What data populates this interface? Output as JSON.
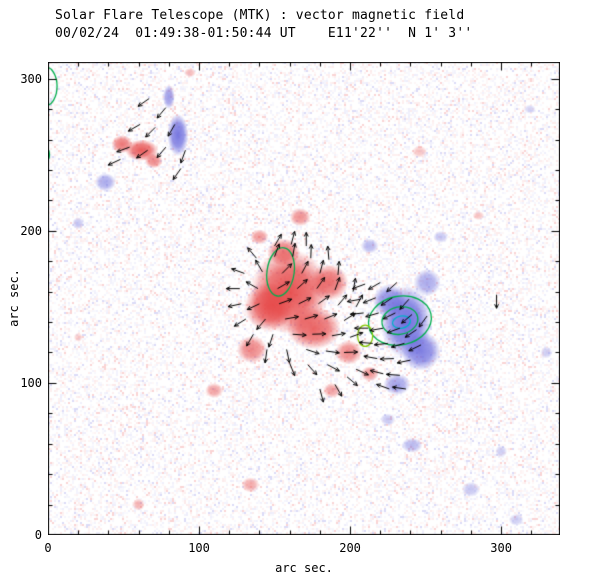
{
  "title": {
    "line1": "Solar Flare Telescope (MTK) : vector magnetic field",
    "line2": "00/02/24  01:49:38-01:50:44 UT    E11'22''  N 1' 3''"
  },
  "axes": {
    "xlabel": "arc sec.",
    "ylabel": "arc sec.",
    "x_range": [
      0,
      339
    ],
    "y_range": [
      0,
      311
    ],
    "x_ticks": [
      0,
      100,
      200,
      300
    ],
    "y_ticks": [
      0,
      100,
      200,
      300
    ],
    "minor_tick_step": 20
  },
  "colors": {
    "background": "#ffffff",
    "axis": "#000000",
    "positive": "#e64545",
    "negative": "#6464dc",
    "vector": "#000000",
    "contour_green": "#00ae4d",
    "contour_cyan": "#00b2c8",
    "contour_yellow_green": "#86c800",
    "noise_red": "#e63c3c",
    "noise_blue": "#5a5adc"
  },
  "chart_data": {
    "type": "heatmap",
    "title": "Solar Flare Telescope (MTK) : vector magnetic field",
    "subtitle": "00/02/24  01:49:38-01:50:44 UT    E11'22''  N 1' 3''",
    "xlabel": "arc sec.",
    "ylabel": "arc sec.",
    "x_range": [
      0,
      339
    ],
    "y_range": [
      0,
      311
    ],
    "x_ticks": [
      0,
      100,
      200,
      300
    ],
    "y_ticks": [
      0,
      100,
      200,
      300
    ],
    "positive_polarity_blobs": [
      [
        160,
        160,
        26,
        28,
        1
      ],
      [
        146,
        150,
        16,
        16,
        0.95
      ],
      [
        176,
        136,
        18,
        14,
        0.9
      ],
      [
        186,
        166,
        13,
        12,
        0.85
      ],
      [
        156,
        186,
        11,
        9,
        0.8
      ],
      [
        199,
        120,
        9,
        8,
        0.7
      ],
      [
        213,
        106,
        6,
        5,
        0.6
      ],
      [
        167,
        209,
        7,
        6,
        0.65
      ],
      [
        140,
        196,
        6,
        5,
        0.6
      ],
      [
        135,
        122,
        10,
        9,
        0.7
      ],
      [
        110,
        95,
        6,
        5,
        0.55
      ],
      [
        188,
        95,
        6,
        5,
        0.55
      ],
      [
        62,
        253,
        11,
        7,
        0.95
      ],
      [
        49,
        257,
        7,
        6,
        0.8
      ],
      [
        70,
        246,
        6,
        5,
        0.7
      ],
      [
        134,
        33,
        6,
        5,
        0.5
      ],
      [
        60,
        20,
        4,
        4,
        0.45
      ],
      [
        94,
        304,
        4,
        3,
        0.4
      ],
      [
        246,
        252,
        5,
        4,
        0.35
      ],
      [
        285,
        210,
        4,
        3,
        0.35
      ],
      [
        20,
        130,
        3,
        3,
        0.3
      ]
    ],
    "negative_polarity_blobs": [
      [
        237,
        140,
        17,
        24,
        1
      ],
      [
        247,
        121,
        13,
        13,
        0.9
      ],
      [
        226,
        154,
        11,
        11,
        0.8
      ],
      [
        251,
        166,
        9,
        9,
        0.6
      ],
      [
        231,
        99,
        9,
        7,
        0.65
      ],
      [
        213,
        190,
        6,
        5,
        0.5
      ],
      [
        86,
        263,
        7,
        14,
        0.95
      ],
      [
        80,
        288,
        4,
        8,
        0.7
      ],
      [
        38,
        232,
        7,
        6,
        0.6
      ],
      [
        20,
        205,
        4,
        4,
        0.4
      ],
      [
        241,
        59,
        7,
        5,
        0.5
      ],
      [
        280,
        30,
        6,
        5,
        0.4
      ],
      [
        300,
        55,
        4,
        4,
        0.35
      ],
      [
        330,
        120,
        4,
        4,
        0.35
      ],
      [
        310,
        10,
        5,
        4,
        0.35
      ],
      [
        260,
        196,
        5,
        4,
        0.4
      ],
      [
        225,
        76,
        5,
        4,
        0.4
      ],
      [
        319,
        280,
        4,
        3,
        0.3
      ]
    ],
    "contours": [
      {
        "x": 154,
        "y": 173,
        "rx": 9,
        "ry": 16,
        "rot": -8,
        "color": "green"
      },
      {
        "x": 233,
        "y": 141,
        "rx": 21,
        "ry": 16,
        "rot": 12,
        "color": "green"
      },
      {
        "x": 233,
        "y": 141,
        "rx": 12,
        "ry": 9,
        "rot": 12,
        "color": "green"
      },
      {
        "x": 234,
        "y": 140,
        "rx": 6,
        "ry": 4,
        "rot": 12,
        "color": "cyan"
      },
      {
        "x": 210,
        "y": 131,
        "rx": 5,
        "ry": 7,
        "rot": 0,
        "color": "yellow_green"
      },
      {
        "x": -2,
        "y": 295,
        "rx": 8,
        "ry": 13,
        "rot": 0,
        "color": "green"
      },
      {
        "x": -3,
        "y": 250,
        "rx": 4,
        "ry": 6,
        "rot": 0,
        "color": "green"
      }
    ],
    "vector_length_arcsec": 9,
    "vectors": [
      [
        67,
        287,
        215
      ],
      [
        78,
        281,
        230
      ],
      [
        61,
        270,
        210
      ],
      [
        71,
        268,
        225
      ],
      [
        84,
        270,
        240
      ],
      [
        54,
        255,
        200
      ],
      [
        66,
        253,
        215
      ],
      [
        78,
        255,
        230
      ],
      [
        91,
        253,
        250
      ],
      [
        48,
        247,
        205
      ],
      [
        88,
        241,
        235
      ],
      [
        150,
        190,
        60
      ],
      [
        161,
        191,
        75
      ],
      [
        171,
        190,
        90
      ],
      [
        138,
        182,
        130
      ],
      [
        150,
        183,
        70
      ],
      [
        162,
        183,
        80
      ],
      [
        174,
        182,
        88
      ],
      [
        186,
        181,
        95
      ],
      [
        130,
        172,
        160
      ],
      [
        142,
        173,
        120
      ],
      [
        155,
        172,
        45
      ],
      [
        168,
        172,
        62
      ],
      [
        180,
        172,
        75
      ],
      [
        192,
        171,
        85
      ],
      [
        127,
        162,
        180
      ],
      [
        139,
        162,
        150
      ],
      [
        152,
        162,
        30
      ],
      [
        165,
        162,
        42
      ],
      [
        178,
        162,
        55
      ],
      [
        190,
        161,
        70
      ],
      [
        202,
        160,
        80
      ],
      [
        128,
        152,
        192
      ],
      [
        140,
        152,
        205
      ],
      [
        153,
        152,
        20
      ],
      [
        166,
        152,
        26
      ],
      [
        179,
        152,
        36
      ],
      [
        192,
        151,
        50
      ],
      [
        204,
        150,
        62
      ],
      [
        131,
        142,
        212
      ],
      [
        144,
        142,
        230
      ],
      [
        157,
        142,
        10
      ],
      [
        170,
        142,
        16
      ],
      [
        183,
        142,
        22
      ],
      [
        196,
        141,
        32
      ],
      [
        136,
        132,
        240
      ],
      [
        149,
        132,
        252
      ],
      [
        162,
        132,
        356
      ],
      [
        175,
        132,
        2
      ],
      [
        188,
        131,
        10
      ],
      [
        200,
        130,
        20
      ],
      [
        145,
        122,
        262
      ],
      [
        158,
        122,
        282
      ],
      [
        171,
        122,
        342
      ],
      [
        184,
        121,
        352
      ],
      [
        196,
        120,
        2
      ],
      [
        160,
        113,
        292
      ],
      [
        172,
        112,
        312
      ],
      [
        185,
        112,
        332
      ],
      [
        190,
        99,
        300
      ],
      [
        198,
        104,
        320
      ],
      [
        204,
        109,
        335
      ],
      [
        180,
        96,
        285
      ],
      [
        210,
        165,
        200
      ],
      [
        220,
        166,
        210
      ],
      [
        231,
        166,
        222
      ],
      [
        207,
        155,
        190
      ],
      [
        217,
        156,
        202
      ],
      [
        228,
        156,
        214
      ],
      [
        239,
        155,
        228
      ],
      [
        209,
        146,
        186
      ],
      [
        219,
        146,
        196
      ],
      [
        230,
        146,
        206
      ],
      [
        241,
        145,
        220
      ],
      [
        251,
        144,
        234
      ],
      [
        212,
        136,
        180
      ],
      [
        222,
        136,
        190
      ],
      [
        233,
        136,
        200
      ],
      [
        244,
        135,
        214
      ],
      [
        215,
        126,
        176
      ],
      [
        225,
        126,
        186
      ],
      [
        236,
        126,
        196
      ],
      [
        247,
        125,
        206
      ],
      [
        218,
        116,
        170
      ],
      [
        229,
        116,
        182
      ],
      [
        240,
        115,
        192
      ],
      [
        222,
        106,
        166
      ],
      [
        233,
        105,
        176
      ],
      [
        226,
        96,
        160
      ],
      [
        237,
        96,
        172
      ],
      [
        297,
        158,
        270
      ]
    ],
    "noise": {
      "seed": 20000224,
      "density": 0.42
    }
  }
}
